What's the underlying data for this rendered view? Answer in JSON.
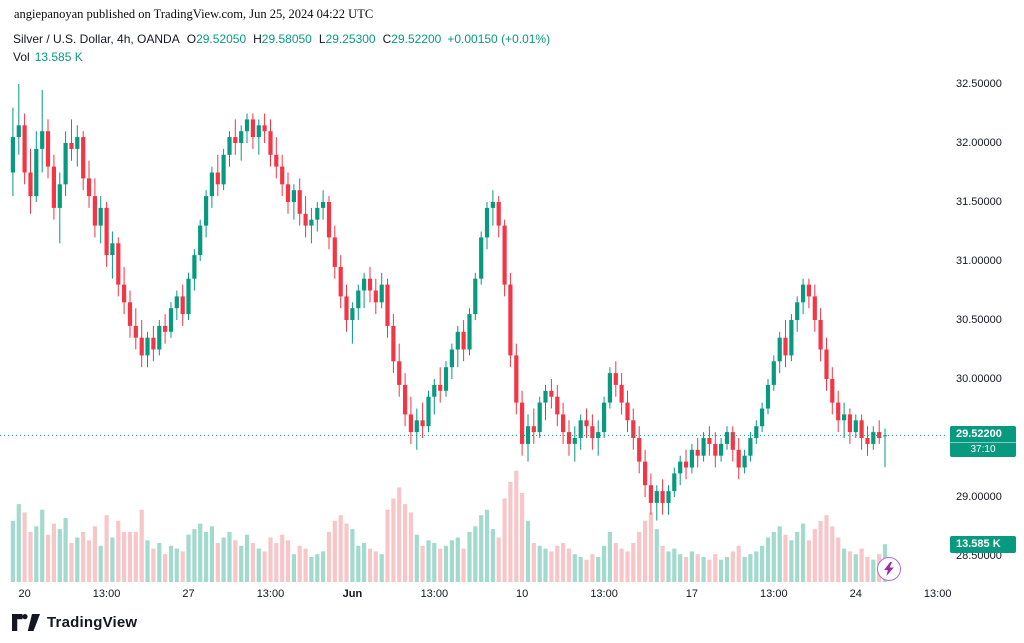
{
  "attribution": "angiepanoyan published on TradingView.com, Jun 25, 2024 04:22 UTC",
  "header": {
    "symbol": "Silver / U.S. Dollar, 4h, OANDA",
    "ohlc": [
      {
        "k": "O",
        "v": "29.52050"
      },
      {
        "k": "H",
        "v": "29.58050"
      },
      {
        "k": "L",
        "v": "29.25300"
      },
      {
        "k": "C",
        "v": "29.52200"
      }
    ],
    "change": "+0.00150 (+0.01%)",
    "vol_label": "Vol",
    "vol_value": "13.585 K"
  },
  "price_axis": [
    {
      "text": "32.50000",
      "price": 32.5
    },
    {
      "text": "32.00000",
      "price": 32.0
    },
    {
      "text": "31.50000",
      "price": 31.5
    },
    {
      "text": "31.00000",
      "price": 31.0
    },
    {
      "text": "30.50000",
      "price": 30.5
    },
    {
      "text": "30.00000",
      "price": 30.0
    },
    {
      "text": "29.00000",
      "price": 29.0
    },
    {
      "text": "28.50000",
      "price": 28.5
    }
  ],
  "price_badge": {
    "text": "29.52200",
    "countdown": "37:10",
    "price": 29.522
  },
  "volume_badge": {
    "text": "13.585 K",
    "volume": 13.585
  },
  "time_axis": [
    {
      "text": "20",
      "idx": 2
    },
    {
      "text": "13:00",
      "idx": 16
    },
    {
      "text": "27",
      "idx": 30
    },
    {
      "text": "13:00",
      "idx": 44
    },
    {
      "text": "Jun",
      "idx": 58,
      "b": 1
    },
    {
      "text": "13:00",
      "idx": 72
    },
    {
      "text": "10",
      "idx": 87
    },
    {
      "text": "13:00",
      "idx": 101
    },
    {
      "text": "17",
      "idx": 116
    },
    {
      "text": "13:00",
      "idx": 130
    },
    {
      "text": "24",
      "idx": 144
    },
    {
      "text": "13:00",
      "idx": 158
    }
  ],
  "footer": {
    "brand": "TradingView"
  },
  "colors": {
    "up": "#089981",
    "down": "#F23645",
    "vol_up": "#A3DACE",
    "vol_down": "#F7C6C9",
    "badge": "#089981",
    "flash": "#9C27B0",
    "text": "#131722"
  },
  "chart_data": {
    "type": "candlestick+volume",
    "title": "Silver / U.S. Dollar, 4h, OANDA",
    "interval": "4h",
    "x_span": "May 20 - Jun 25 (4-hour bars)",
    "ylim": [
      28.4,
      32.55
    ],
    "volume_unit": "K",
    "last_price": 29.522,
    "columns": [
      "open",
      "high",
      "low",
      "close",
      "volume_k"
    ],
    "candles": [
      [
        31.75,
        32.3,
        31.55,
        32.05,
        22
      ],
      [
        32.05,
        32.5,
        31.9,
        32.15,
        28
      ],
      [
        32.15,
        32.25,
        31.65,
        31.75,
        25
      ],
      [
        31.75,
        31.95,
        31.4,
        31.55,
        18
      ],
      [
        31.55,
        32.1,
        31.5,
        31.95,
        20
      ],
      [
        31.95,
        32.45,
        31.75,
        32.1,
        26
      ],
      [
        32.1,
        32.2,
        31.7,
        31.8,
        17
      ],
      [
        31.8,
        31.9,
        31.35,
        31.45,
        21
      ],
      [
        31.45,
        31.75,
        31.15,
        31.65,
        19
      ],
      [
        31.65,
        32.1,
        31.55,
        32,
        23
      ],
      [
        32,
        32.2,
        31.85,
        31.95,
        14
      ],
      [
        31.95,
        32.15,
        31.8,
        32.05,
        16
      ],
      [
        32.05,
        32.1,
        31.6,
        31.7,
        18
      ],
      [
        31.7,
        31.85,
        31.45,
        31.55,
        15
      ],
      [
        31.55,
        31.7,
        31.2,
        31.3,
        20
      ],
      [
        31.3,
        31.55,
        31.15,
        31.45,
        13
      ],
      [
        31.45,
        31.5,
        30.95,
        31.05,
        24
      ],
      [
        31.05,
        31.25,
        30.85,
        31.15,
        16
      ],
      [
        31.15,
        31.2,
        30.7,
        30.8,
        22
      ],
      [
        30.8,
        30.95,
        30.55,
        30.65,
        18
      ],
      [
        30.65,
        30.75,
        30.35,
        30.45,
        18
      ],
      [
        30.45,
        30.6,
        30.25,
        30.35,
        18
      ],
      [
        30.35,
        30.5,
        30.1,
        30.2,
        26
      ],
      [
        30.2,
        30.4,
        30.1,
        30.35,
        15
      ],
      [
        30.35,
        30.45,
        30.15,
        30.25,
        12
      ],
      [
        30.25,
        30.5,
        30.2,
        30.45,
        14
      ],
      [
        30.45,
        30.55,
        30.3,
        30.4,
        10
      ],
      [
        30.4,
        30.65,
        30.35,
        30.6,
        13
      ],
      [
        30.6,
        30.75,
        30.5,
        30.7,
        12
      ],
      [
        30.7,
        30.8,
        30.45,
        30.55,
        11
      ],
      [
        30.55,
        30.9,
        30.5,
        30.85,
        17
      ],
      [
        30.85,
        31.1,
        30.75,
        31.05,
        19
      ],
      [
        31.05,
        31.35,
        31,
        31.3,
        21
      ],
      [
        31.3,
        31.6,
        31.2,
        31.55,
        18
      ],
      [
        31.55,
        31.8,
        31.45,
        31.75,
        20
      ],
      [
        31.75,
        31.9,
        31.55,
        31.65,
        14
      ],
      [
        31.65,
        31.95,
        31.6,
        31.9,
        16
      ],
      [
        31.9,
        32.1,
        31.8,
        32.05,
        18
      ],
      [
        32.05,
        32.2,
        31.9,
        32,
        15
      ],
      [
        32,
        32.15,
        31.85,
        32.1,
        13
      ],
      [
        32.1,
        32.25,
        32,
        32.2,
        17
      ],
      [
        32.2,
        32.25,
        31.95,
        32.05,
        14
      ],
      [
        32.05,
        32.2,
        31.9,
        32.15,
        12
      ],
      [
        32.15,
        32.25,
        32,
        32.1,
        11
      ],
      [
        32.1,
        32.2,
        31.8,
        31.9,
        16
      ],
      [
        31.9,
        32.05,
        31.7,
        31.8,
        14
      ],
      [
        31.8,
        31.9,
        31.55,
        31.65,
        17
      ],
      [
        31.65,
        31.75,
        31.4,
        31.5,
        15
      ],
      [
        31.5,
        31.65,
        31.35,
        31.6,
        10
      ],
      [
        31.6,
        31.7,
        31.3,
        31.4,
        13
      ],
      [
        31.4,
        31.55,
        31.2,
        31.3,
        12
      ],
      [
        31.3,
        31.45,
        31.15,
        31.35,
        9
      ],
      [
        31.35,
        31.5,
        31.25,
        31.45,
        10
      ],
      [
        31.45,
        31.6,
        31.35,
        31.5,
        11
      ],
      [
        31.5,
        31.55,
        31.1,
        31.2,
        18
      ],
      [
        31.2,
        31.3,
        30.85,
        30.95,
        22
      ],
      [
        30.95,
        31.05,
        30.6,
        30.7,
        24
      ],
      [
        30.7,
        30.8,
        30.4,
        30.5,
        21
      ],
      [
        30.5,
        30.65,
        30.3,
        30.6,
        19
      ],
      [
        30.6,
        30.8,
        30.5,
        30.75,
        13
      ],
      [
        30.75,
        30.9,
        30.6,
        30.85,
        14
      ],
      [
        30.85,
        30.95,
        30.65,
        30.75,
        12
      ],
      [
        30.75,
        30.85,
        30.55,
        30.65,
        11
      ],
      [
        30.65,
        30.9,
        30.6,
        30.8,
        10
      ],
      [
        30.8,
        30.85,
        30.35,
        30.45,
        26
      ],
      [
        30.45,
        30.55,
        30.05,
        30.15,
        30
      ],
      [
        30.15,
        30.3,
        29.85,
        29.95,
        34
      ],
      [
        29.95,
        30.05,
        29.6,
        29.7,
        28
      ],
      [
        29.7,
        29.85,
        29.45,
        29.55,
        25
      ],
      [
        29.55,
        29.75,
        29.4,
        29.65,
        17
      ],
      [
        29.65,
        29.8,
        29.5,
        29.6,
        13
      ],
      [
        29.6,
        29.9,
        29.55,
        29.85,
        15
      ],
      [
        29.85,
        30,
        29.7,
        29.95,
        14
      ],
      [
        29.95,
        30.1,
        29.8,
        29.9,
        12
      ],
      [
        29.9,
        30.15,
        29.85,
        30.1,
        13
      ],
      [
        30.1,
        30.3,
        30,
        30.25,
        15
      ],
      [
        30.25,
        30.45,
        30.1,
        30.4,
        16
      ],
      [
        30.4,
        30.5,
        30.15,
        30.25,
        12
      ],
      [
        30.25,
        30.6,
        30.2,
        30.55,
        18
      ],
      [
        30.55,
        30.9,
        30.5,
        30.85,
        20
      ],
      [
        30.85,
        31.25,
        30.8,
        31.2,
        24
      ],
      [
        31.2,
        31.5,
        31.1,
        31.45,
        26
      ],
      [
        31.45,
        31.6,
        31.3,
        31.5,
        19
      ],
      [
        31.5,
        31.55,
        31.2,
        31.3,
        16
      ],
      [
        31.3,
        31.35,
        30.7,
        30.8,
        30
      ],
      [
        30.8,
        30.9,
        30.1,
        30.2,
        36
      ],
      [
        30.2,
        30.3,
        29.7,
        29.8,
        40
      ],
      [
        29.8,
        29.9,
        29.35,
        29.45,
        32
      ],
      [
        29.45,
        29.7,
        29.3,
        29.6,
        22
      ],
      [
        29.6,
        29.75,
        29.45,
        29.55,
        14
      ],
      [
        29.55,
        29.85,
        29.5,
        29.8,
        13
      ],
      [
        29.8,
        29.95,
        29.65,
        29.9,
        12
      ],
      [
        29.9,
        30,
        29.75,
        29.85,
        11
      ],
      [
        29.85,
        29.95,
        29.6,
        29.7,
        13
      ],
      [
        29.7,
        29.8,
        29.45,
        29.55,
        14
      ],
      [
        29.55,
        29.65,
        29.35,
        29.45,
        12
      ],
      [
        29.45,
        29.6,
        29.3,
        29.5,
        10
      ],
      [
        29.5,
        29.7,
        29.4,
        29.65,
        9
      ],
      [
        29.65,
        29.75,
        29.5,
        29.6,
        8
      ],
      [
        29.6,
        29.7,
        29.4,
        29.5,
        10
      ],
      [
        29.5,
        29.65,
        29.35,
        29.55,
        9
      ],
      [
        29.55,
        29.85,
        29.5,
        29.8,
        13
      ],
      [
        29.8,
        30.1,
        29.75,
        30.05,
        18
      ],
      [
        30.05,
        30.15,
        29.85,
        29.95,
        14
      ],
      [
        29.95,
        30.05,
        29.7,
        29.8,
        12
      ],
      [
        29.8,
        29.9,
        29.55,
        29.65,
        11
      ],
      [
        29.65,
        29.75,
        29.4,
        29.5,
        14
      ],
      [
        29.5,
        29.6,
        29.2,
        29.3,
        18
      ],
      [
        29.3,
        29.4,
        29,
        29.1,
        22
      ],
      [
        29.1,
        29.2,
        28.85,
        28.95,
        25
      ],
      [
        28.95,
        29.1,
        28.8,
        29.05,
        19
      ],
      [
        29.05,
        29.15,
        28.85,
        28.95,
        13
      ],
      [
        28.95,
        29.1,
        28.85,
        29.05,
        11
      ],
      [
        29.05,
        29.25,
        29,
        29.2,
        12
      ],
      [
        29.2,
        29.35,
        29.1,
        29.3,
        10
      ],
      [
        29.3,
        29.4,
        29.15,
        29.25,
        9
      ],
      [
        29.25,
        29.45,
        29.2,
        29.4,
        11
      ],
      [
        29.4,
        29.5,
        29.25,
        29.35,
        10
      ],
      [
        29.35,
        29.55,
        29.3,
        29.5,
        9
      ],
      [
        29.5,
        29.6,
        29.35,
        29.45,
        8
      ],
      [
        29.45,
        29.55,
        29.25,
        29.35,
        10
      ],
      [
        29.35,
        29.5,
        29.3,
        29.45,
        8
      ],
      [
        29.45,
        29.6,
        29.4,
        29.55,
        9
      ],
      [
        29.55,
        29.6,
        29.3,
        29.4,
        11
      ],
      [
        29.4,
        29.5,
        29.15,
        29.25,
        13
      ],
      [
        29.25,
        29.4,
        29.2,
        29.35,
        9
      ],
      [
        29.35,
        29.55,
        29.3,
        29.5,
        10
      ],
      [
        29.5,
        29.65,
        29.45,
        29.6,
        11
      ],
      [
        29.6,
        29.8,
        29.55,
        29.75,
        13
      ],
      [
        29.75,
        30,
        29.7,
        29.95,
        16
      ],
      [
        29.95,
        30.2,
        29.9,
        30.15,
        18
      ],
      [
        30.15,
        30.4,
        30.05,
        30.35,
        20
      ],
      [
        30.35,
        30.5,
        30.1,
        30.2,
        17
      ],
      [
        30.2,
        30.55,
        30.15,
        30.5,
        15
      ],
      [
        30.5,
        30.7,
        30.4,
        30.65,
        18
      ],
      [
        30.65,
        30.85,
        30.55,
        30.8,
        21
      ],
      [
        30.8,
        30.85,
        30.6,
        30.7,
        15
      ],
      [
        30.7,
        30.8,
        30.4,
        30.5,
        19
      ],
      [
        30.5,
        30.6,
        30.15,
        30.25,
        22
      ],
      [
        30.25,
        30.35,
        29.9,
        30,
        24
      ],
      [
        30,
        30.1,
        29.7,
        29.8,
        20
      ],
      [
        29.8,
        29.9,
        29.55,
        29.65,
        16
      ],
      [
        29.65,
        29.8,
        29.5,
        29.7,
        12
      ],
      [
        29.7,
        29.75,
        29.45,
        29.55,
        11
      ],
      [
        29.55,
        29.7,
        29.5,
        29.65,
        10
      ],
      [
        29.65,
        29.7,
        29.4,
        29.5,
        12
      ],
      [
        29.5,
        29.6,
        29.35,
        29.45,
        9
      ],
      [
        29.45,
        29.6,
        29.4,
        29.55,
        8
      ],
      [
        29.55,
        29.65,
        29.45,
        29.5,
        10
      ],
      [
        29.5205,
        29.5805,
        29.253,
        29.522,
        13.585
      ]
    ]
  }
}
